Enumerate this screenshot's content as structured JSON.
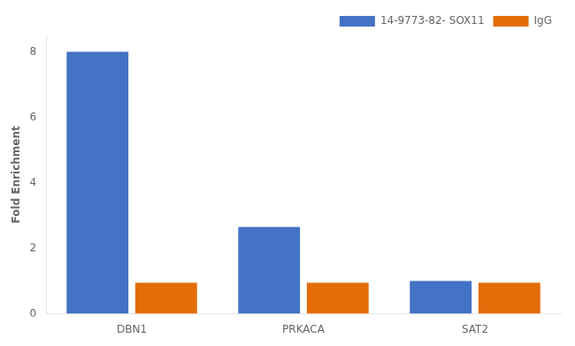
{
  "chart_data": {
    "type": "bar",
    "categories": [
      "DBN1",
      "PRKACA",
      "SAT2"
    ],
    "series": [
      {
        "name": "14-9773-82- SOX11",
        "color": "#4472C4",
        "values": [
          8.0,
          2.65,
          1.0
        ]
      },
      {
        "name": "IgG",
        "color": "#E36C09",
        "values": [
          0.95,
          0.95,
          0.95
        ]
      }
    ],
    "ylabel": "Fold Enrichment",
    "ylim": [
      0,
      8.5
    ],
    "yticks": [
      0,
      2,
      4,
      6,
      8
    ],
    "grid": false,
    "legend": "upper right"
  }
}
